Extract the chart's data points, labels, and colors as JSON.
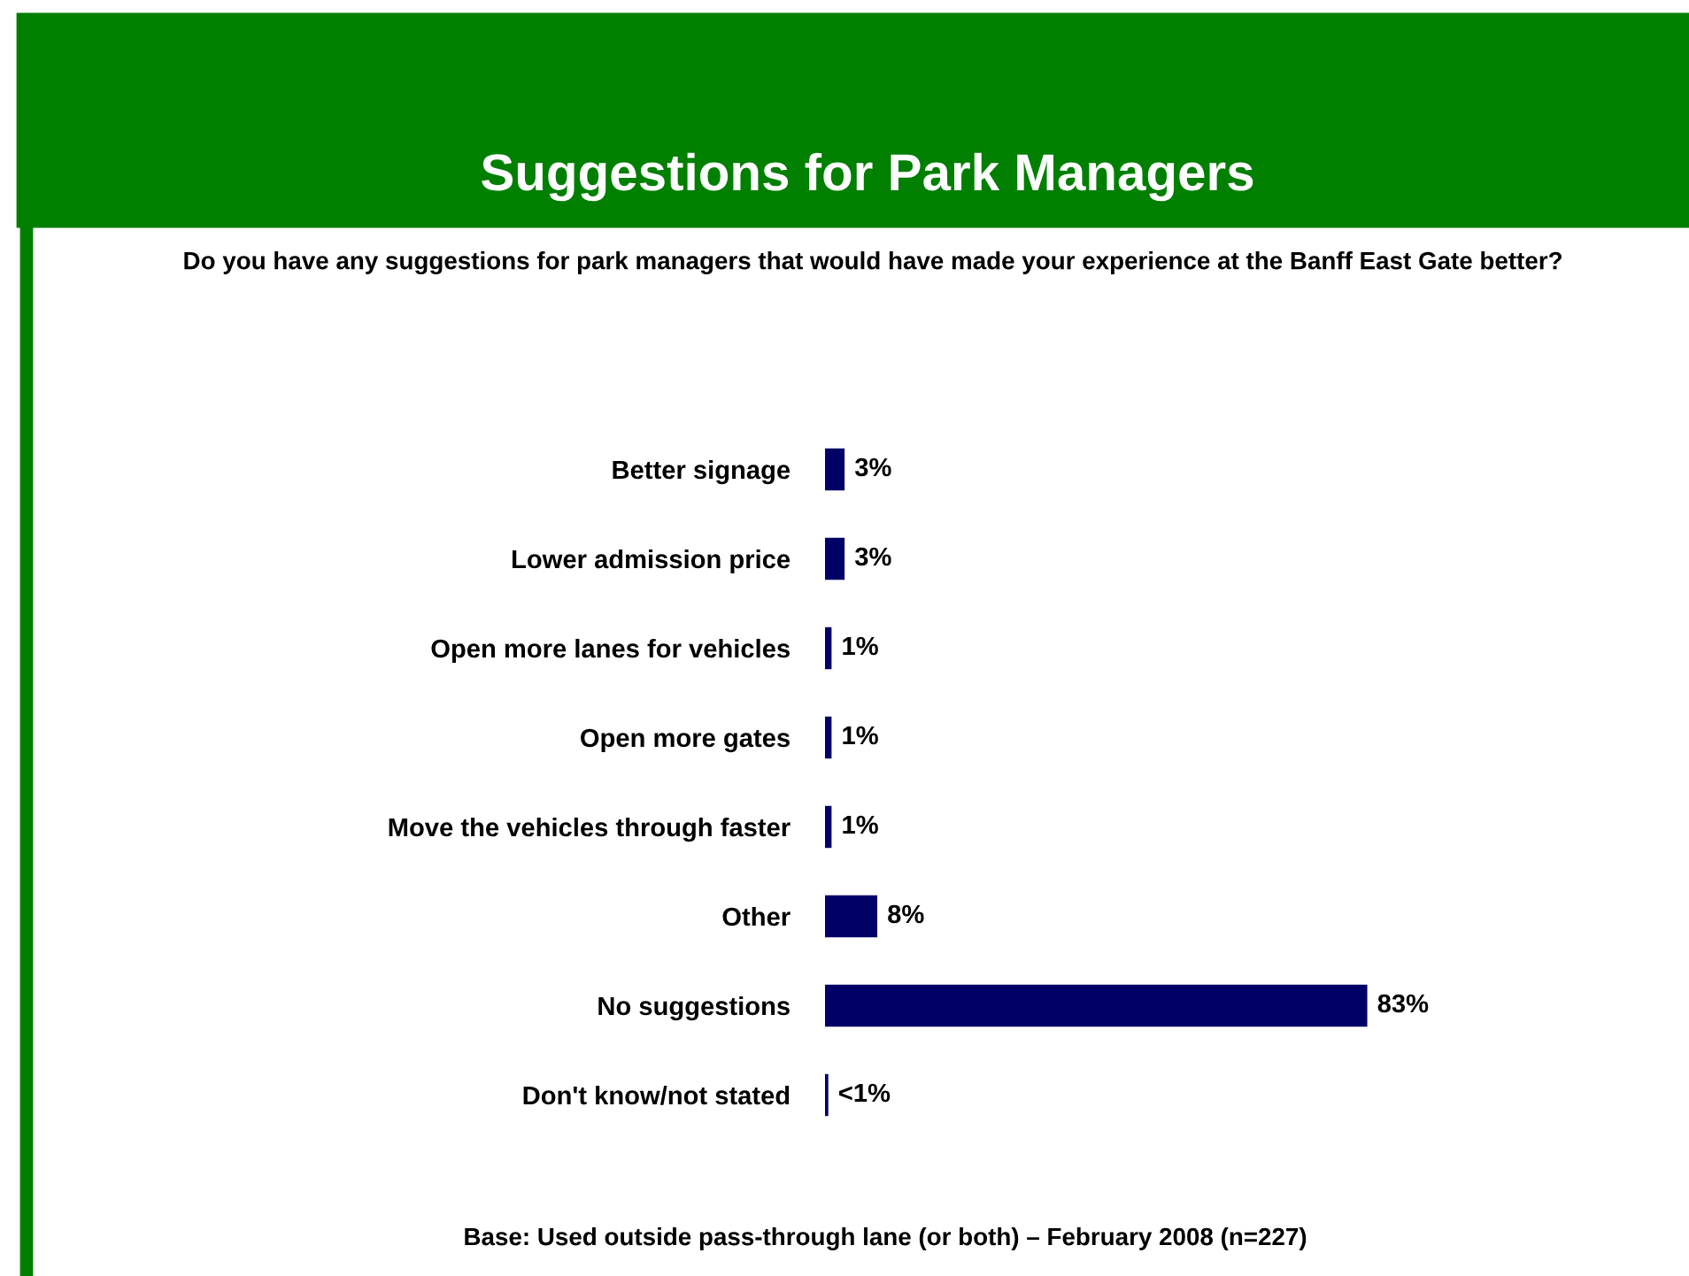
{
  "chart_data": {
    "type": "bar",
    "orientation": "horizontal",
    "title": "Suggestions for Park Managers",
    "subtitle": "Do you have any suggestions for park managers that would have made your experience at the Banff East Gate better?",
    "categories": [
      "Better signage",
      "Lower admission price",
      "Open more lanes for vehicles",
      "Open more gates",
      "Move the vehicles through faster",
      "Other",
      "No suggestions",
      "Don't know/not stated"
    ],
    "values": [
      3,
      3,
      1,
      1,
      1,
      8,
      83,
      0.5
    ],
    "value_labels": [
      "3%",
      "3%",
      "1%",
      "1%",
      "1%",
      "8%",
      "83%",
      "<1%"
    ],
    "color": "#000066",
    "annotations": [
      "Base: Used outside pass-through lane (or both) – February 2008 (n=227)"
    ],
    "grid": false,
    "legend": false
  }
}
